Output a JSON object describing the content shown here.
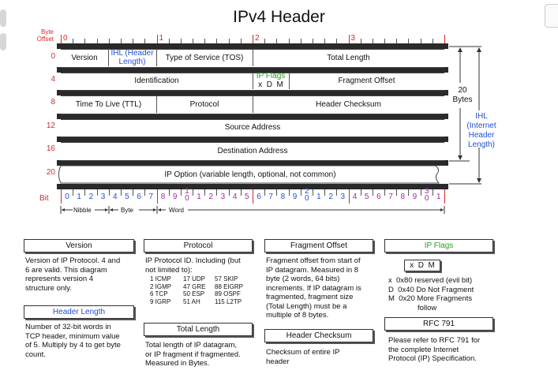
{
  "title": "IPv4 Header",
  "axis": {
    "byte_offset_label": "Byte\nOffset",
    "bit_label": "Bit",
    "top_byte_marks": [
      "0",
      "1",
      "2",
      "3"
    ],
    "row_offsets": [
      "0",
      "4",
      "8",
      "12",
      "16",
      "20"
    ],
    "bit_numbers": [
      "0",
      "1",
      "2",
      "3",
      "4",
      "5",
      "6",
      "7",
      "8",
      "9",
      "1\n0",
      "1",
      "2",
      "3",
      "4",
      "5",
      "6",
      "7",
      "8",
      "9",
      "2\n0",
      "1",
      "2",
      "3",
      "4",
      "5",
      "6",
      "7",
      "8",
      "9",
      "3\n0",
      "1"
    ],
    "nibble": "Nibble",
    "byte": "Byte",
    "word": "Word"
  },
  "fields": {
    "version": "Version",
    "ihl": "IHL (Header\nLength)",
    "tos": "Type of Service (TOS)",
    "total_length": "Total Length",
    "identification": "Identification",
    "ip_flags": "IP Flags",
    "flags_bits": "x  D  M",
    "fragment_offset": "Fragment Offset",
    "ttl": "Time To Live (TTL)",
    "protocol": "Protocol",
    "header_checksum": "Header Checksum",
    "source_address": "Source Address",
    "destination_address": "Destination Address",
    "ip_option": "IP Option (variable length, optional, not common)"
  },
  "side": {
    "twenty_bytes": "20\nBytes",
    "ihl_note": "IHL\n(Internet\nHeader\nLength)"
  },
  "panels": {
    "version_title": "Version",
    "version_text": "Version of IP Protocol.  4 and\n6 are valid.  This diagram\nrepresents version 4\nstructure only.",
    "header_length_title": "Header Length",
    "header_length_text": "Number of 32-bit words in\nTCP header, minimum value\nof 5.  Multiply by 4 to get byte\ncount.",
    "protocol_title": "Protocol",
    "protocol_text": "IP Protocol ID.  Including (but\nnot limited to):",
    "protocol_list": [
      [
        "1 ICMP",
        "17 UDP",
        "57 SKIP"
      ],
      [
        "2 IGMP",
        "47 GRE",
        "88 EIGRP"
      ],
      [
        "6 TCP",
        "50 ESP",
        "89 OSPF"
      ],
      [
        "9 IGRP",
        "51 AH",
        "115 L2TP"
      ]
    ],
    "total_length_title": "Total Length",
    "total_length_text": "Total length of IP datagram,\nor IP fragment if fragmented.\nMeasured in Bytes.",
    "fragment_offset_title": "Fragment Offset",
    "fragment_offset_text": "Fragment offset from start of\nIP datagram.  Measured in 8\nbyte (2 words, 64 bits)\nincrements.  If IP datagram is\nfragmented, fragment size\n(Total Length) must be a\nmultiple of 8 bytes.",
    "header_checksum_title": "Header Checksum",
    "header_checksum_text": "Checksum of entire IP\nheader",
    "ip_flags_title": "IP Flags",
    "ip_flags_box": "x  D  M",
    "ip_flags_text": "x  0x80 reserved (evil bit)\nD  0x40 Do Not Fragment\nM  0x20 More Fragments\n              follow",
    "rfc_title": "RFC 791",
    "rfc_text": "Please refer to RFC 791 for\nthe complete Internet\nProtocol (IP) Specification."
  },
  "colors": {
    "accent_red": "#d22b2b",
    "accent_blue": "#1f4fd8",
    "accent_green": "#2a9a2a",
    "accent_purple": "#a02aa0"
  }
}
